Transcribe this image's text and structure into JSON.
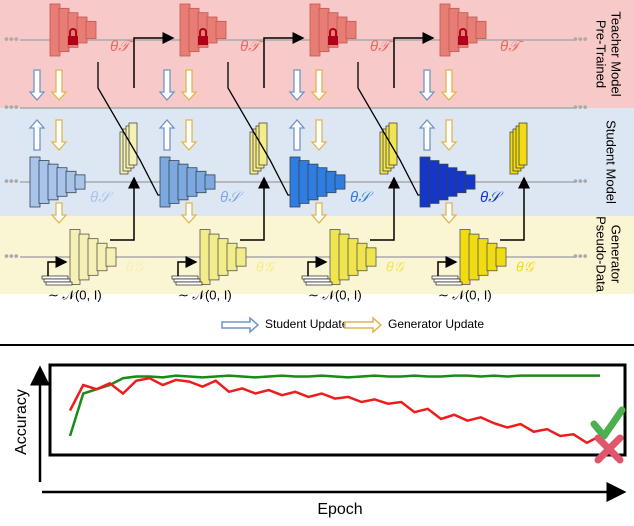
{
  "diagram": {
    "row_labels": [
      [
        "Pre-Trained",
        "Teacher Model"
      ],
      [
        "Student Model"
      ],
      [
        "Pseudo-Data",
        "Generator"
      ]
    ],
    "stages": [
      {
        "teacher": "θ𝒯",
        "student": "θ𝒮",
        "generator": "θ𝒢",
        "noise": "∼ 𝒩(0, I)"
      },
      {
        "teacher": "θ𝒯",
        "student": "θ𝒮",
        "generator": "θ𝒢",
        "noise": "∼ 𝒩(0, I)"
      },
      {
        "teacher": "θ𝒯",
        "student": "θ𝒮",
        "generator": "θ𝒢",
        "noise": "∼ 𝒩(0, I)"
      },
      {
        "teacher": "θ𝒯",
        "student": "θ𝒮",
        "generator": "θ𝒢",
        "noise": "∼ 𝒩(0, I)"
      }
    ],
    "legend": [
      "Student Update",
      "Generator Update"
    ]
  },
  "chart_data": {
    "type": "line",
    "x_label": "Epoch",
    "y_label": "Accuracy",
    "x": [
      0,
      1,
      2,
      3,
      4,
      5,
      6,
      7,
      8,
      9,
      10,
      11,
      12,
      13,
      14,
      15,
      16,
      17,
      18,
      19,
      20,
      21,
      22,
      23,
      24,
      25,
      26,
      27,
      28,
      29,
      30,
      31,
      32,
      33,
      34,
      35,
      36,
      37,
      38,
      39,
      40
    ],
    "xlim": [
      0,
      40
    ],
    "ylim": [
      0,
      1
    ],
    "series": [
      {
        "color": "#1a8a1a",
        "values": [
          0.2,
          0.7,
          0.75,
          0.8,
          0.88,
          0.9,
          0.9,
          0.89,
          0.91,
          0.9,
          0.89,
          0.9,
          0.91,
          0.9,
          0.89,
          0.9,
          0.91,
          0.9,
          0.9,
          0.91,
          0.9,
          0.89,
          0.9,
          0.91,
          0.9,
          0.9,
          0.91,
          0.9,
          0.9,
          0.91,
          0.91,
          0.9,
          0.91,
          0.9,
          0.91,
          0.91,
          0.91,
          0.91,
          0.91,
          0.91,
          0.91
        ]
      },
      {
        "color": "#ee1c1c",
        "values": [
          0.5,
          0.8,
          0.75,
          0.82,
          0.7,
          0.85,
          0.88,
          0.8,
          0.86,
          0.84,
          0.78,
          0.85,
          0.72,
          0.76,
          0.7,
          0.74,
          0.68,
          0.72,
          0.66,
          0.7,
          0.64,
          0.66,
          0.6,
          0.63,
          0.58,
          0.6,
          0.48,
          0.52,
          0.4,
          0.45,
          0.38,
          0.42,
          0.35,
          0.3,
          0.34,
          0.25,
          0.28,
          0.2,
          0.22,
          0.12,
          0.2
        ]
      }
    ]
  }
}
